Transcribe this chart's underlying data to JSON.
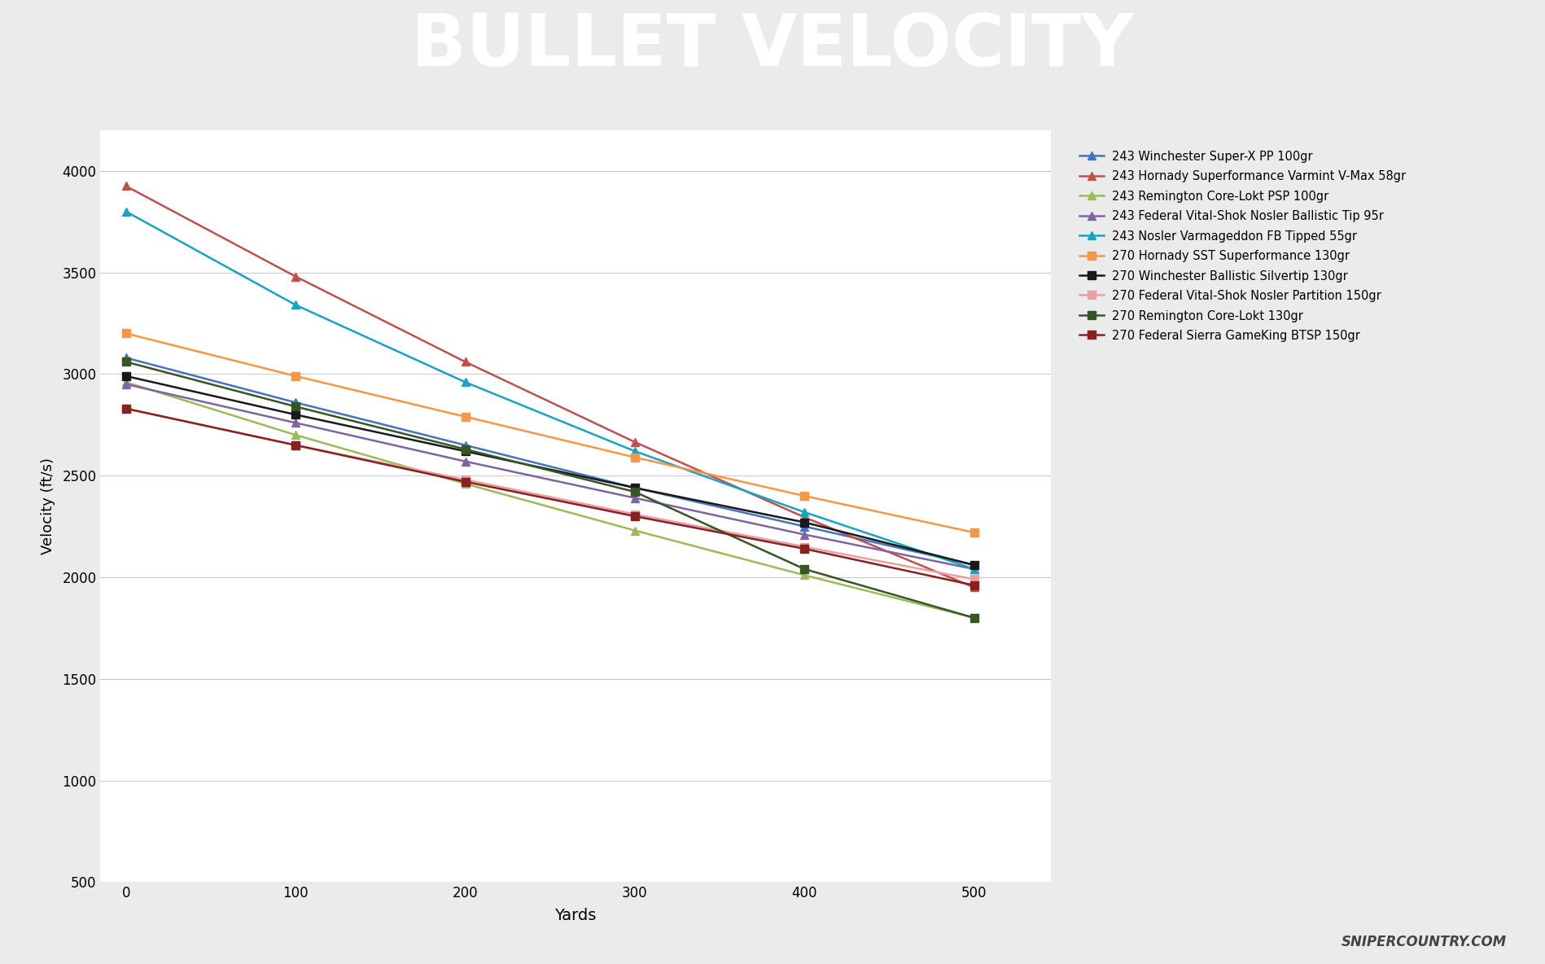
{
  "title": "BULLET VELOCITY",
  "title_bg_color": "#6d6d6d",
  "title_text_color": "#ffffff",
  "red_bar_color": "#e05555",
  "xlabel": "Yards",
  "ylabel": "Velocity (ft/s)",
  "xlim": [
    -15,
    545
  ],
  "ylim": [
    500,
    4200
  ],
  "yticks": [
    500,
    1000,
    1500,
    2000,
    2500,
    3000,
    3500,
    4000
  ],
  "xticks": [
    0,
    100,
    200,
    300,
    400,
    500
  ],
  "background_color": "#ebebeb",
  "plot_bg_color": "#ffffff",
  "footer_text": "SNIPERCOUNTRY.COM",
  "series": [
    {
      "label": "243 Winchester Super-X PP 100gr",
      "color": "#4472c4",
      "marker": "^",
      "values": [
        3080,
        2860,
        2650,
        2440,
        2250,
        2060
      ]
    },
    {
      "label": "243 Hornady Superformance Varmint V-Max 58gr",
      "color": "#c0504d",
      "marker": "^",
      "values": [
        3925,
        3480,
        3060,
        2665,
        2295,
        1950
      ]
    },
    {
      "label": "243 Remington Core-Lokt PSP 100gr",
      "color": "#9bbb59",
      "marker": "^",
      "values": [
        2960,
        2700,
        2460,
        2230,
        2010,
        1800
      ]
    },
    {
      "label": "243 Federal Vital-Shok Nosler Ballistic Tip 95r",
      "color": "#8064a2",
      "marker": "^",
      "values": [
        2950,
        2760,
        2570,
        2390,
        2210,
        2040
      ]
    },
    {
      "label": "243 Nosler Varmageddon FB Tipped 55gr",
      "color": "#17a3c3",
      "marker": "^",
      "values": [
        3800,
        3340,
        2960,
        2620,
        2320,
        2040
      ]
    },
    {
      "label": "270 Hornady SST Superformance 130gr",
      "color": "#f79646",
      "marker": "s",
      "values": [
        3200,
        2990,
        2790,
        2590,
        2400,
        2220
      ]
    },
    {
      "label": "270 Winchester Ballistic Silvertip 130gr",
      "color": "#1a1a1a",
      "marker": "s",
      "values": [
        2990,
        2800,
        2620,
        2440,
        2270,
        2060
      ]
    },
    {
      "label": "270 Federal Vital-Shok Nosler Partition 150gr",
      "color": "#e8a0a0",
      "marker": "s",
      "values": [
        2830,
        2650,
        2480,
        2310,
        2150,
        1990
      ]
    },
    {
      "label": "270 Remington Core-Lokt 130gr",
      "color": "#375623",
      "marker": "s",
      "values": [
        3060,
        2840,
        2630,
        2420,
        2040,
        1800
      ]
    },
    {
      "label": "270 Federal Sierra GameKing BTSP 150gr",
      "color": "#8b2020",
      "marker": "s",
      "values": [
        2830,
        2650,
        2470,
        2300,
        2140,
        1960
      ]
    }
  ]
}
